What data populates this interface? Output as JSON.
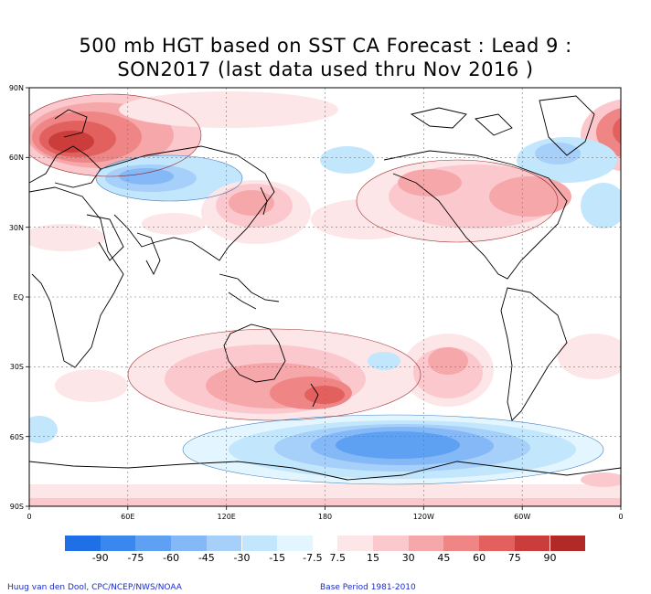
{
  "title": {
    "line1": "500 mb HGT based on SST CA Forecast : Lead 9 :",
    "line2": "SON2017 (last data used thru Nov 2016 )"
  },
  "axes": {
    "lat_labels": [
      "90N",
      "60N",
      "30N",
      "EQ",
      "30S",
      "60S",
      "90S"
    ],
    "lon_labels": [
      "0",
      "60E",
      "120E",
      "180",
      "120W",
      "60W",
      "0"
    ]
  },
  "colorbar": {
    "labels": [
      "-90",
      "-75",
      "-60",
      "-45",
      "-30",
      "-15",
      "-7.5",
      "7.5",
      "15",
      "30",
      "45",
      "60",
      "75",
      "90"
    ],
    "negative_colors": [
      "#1f6fe6",
      "#3a88ee",
      "#5ea0f2",
      "#84b8f6",
      "#a6d0f9",
      "#c2e6fb",
      "#e3f6ff"
    ],
    "positive_colors": [
      "#fde6e8",
      "#fbc9cd",
      "#f6a7a9",
      "#ef8585",
      "#e2615f",
      "#cb3d3a",
      "#b12a26"
    ]
  },
  "footer": {
    "left": "Huug van den Dool, CPC/NCEP/NWS/NOAA",
    "right": "Base Period  1981-2010"
  }
}
